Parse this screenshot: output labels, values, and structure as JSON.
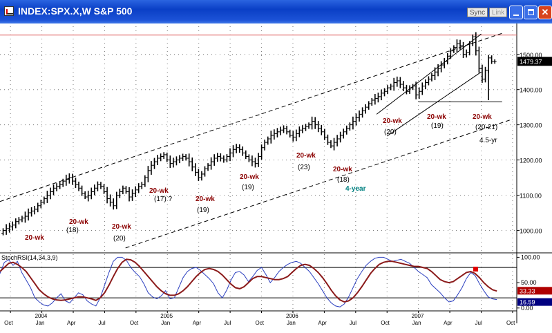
{
  "window": {
    "title": "INDEX:SPX.X,W S&P 500",
    "sync_label": "Sync",
    "link_label": "Link",
    "minimize_icon": "minimize-icon",
    "maximize_icon": "maximize-icon",
    "close_icon": "close-icon"
  },
  "colors": {
    "bars": "#000000",
    "resistance_line": "#e06060",
    "cycle_label": "#8b0000",
    "four_year_label": "#008080",
    "stoch_smooth": "#8b1a1a",
    "stoch_fast": "#2b3fbf",
    "last_price_box": "#000000",
    "stoch_value_1_box": "#b00000",
    "stoch_value_2_box": "#000080"
  },
  "chart_data": [
    {
      "type": "bar",
      "subtype": "weekly OHLC",
      "title": "",
      "y_axis_side": "right",
      "ylim": [
        940,
        1580
      ],
      "yticks": [
        "1500.00",
        "1400.00",
        "1300.00",
        "1200.00",
        "1100.00",
        "1000.00"
      ],
      "ytick_values": [
        1500,
        1400,
        1300,
        1200,
        1100,
        1000
      ],
      "last_price": "1479.37",
      "resistance_level": 1555,
      "support_level_2007": 1365,
      "x_range": [
        "2003-09",
        "2007-10"
      ],
      "month_ticks": [
        "Oct",
        "2004 Jan",
        "Apr",
        "Jul",
        "Oct",
        "2005 Jan",
        "Apr",
        "Jul",
        "Oct",
        "2006 Jan",
        "Apr",
        "Jul",
        "Oct",
        "2007 Jan",
        "Apr",
        "Jul",
        "Oct"
      ],
      "closes": [
        1000,
        1005,
        1010,
        1015,
        1025,
        1030,
        1035,
        1040,
        1050,
        1055,
        1060,
        1070,
        1080,
        1090,
        1100,
        1110,
        1120,
        1125,
        1130,
        1140,
        1145,
        1150,
        1140,
        1130,
        1120,
        1105,
        1095,
        1100,
        1110,
        1120,
        1130,
        1125,
        1110,
        1090,
        1080,
        1070,
        1100,
        1110,
        1120,
        1110,
        1095,
        1105,
        1115,
        1125,
        1130,
        1150,
        1170,
        1185,
        1195,
        1205,
        1210,
        1215,
        1200,
        1190,
        1195,
        1200,
        1205,
        1210,
        1205,
        1195,
        1180,
        1165,
        1150,
        1160,
        1175,
        1185,
        1195,
        1205,
        1210,
        1205,
        1200,
        1210,
        1220,
        1230,
        1235,
        1230,
        1220,
        1210,
        1200,
        1195,
        1190,
        1210,
        1235,
        1250,
        1260,
        1270,
        1275,
        1280,
        1285,
        1290,
        1280,
        1270,
        1265,
        1275,
        1285,
        1290,
        1295,
        1300,
        1310,
        1300,
        1290,
        1280,
        1265,
        1250,
        1240,
        1250,
        1260,
        1270,
        1280,
        1290,
        1300,
        1310,
        1320,
        1330,
        1340,
        1350,
        1360,
        1370,
        1375,
        1380,
        1390,
        1395,
        1405,
        1410,
        1420,
        1425,
        1415,
        1405,
        1395,
        1405,
        1410,
        1385,
        1395,
        1410,
        1420,
        1430,
        1440,
        1450,
        1460,
        1470,
        1480,
        1495,
        1510,
        1520,
        1530,
        1525,
        1500,
        1505,
        1530,
        1550,
        1510,
        1460,
        1430,
        1455,
        1490,
        1480,
        1479.37
      ],
      "lines": [
        {
          "name": "",
          "style": "dashed",
          "from": [
            "2003-09",
            1082
          ],
          "to": [
            "2007-09",
            1560
          ]
        },
        {
          "name": "",
          "style": "dashed",
          "from": [
            "2004-09",
            950
          ],
          "to": [
            "2007-10",
            1316
          ]
        },
        {
          "name": "",
          "style": "solid",
          "from": [
            "2006-09",
            1330
          ],
          "to": [
            "2007-07",
            1558
          ]
        },
        {
          "name": "",
          "style": "solid",
          "from": [
            "2006-10",
            1268
          ],
          "to": [
            "2007-07",
            1450
          ]
        }
      ],
      "annotations": [
        {
          "text": "20-wk",
          "color": "cycle"
        },
        {
          "text": "20-wk",
          "color": "cycle"
        },
        {
          "text": "(18)",
          "color": "black"
        },
        {
          "text": "20-wk",
          "color": "cycle"
        },
        {
          "text": "(20)",
          "color": "black"
        },
        {
          "text": "20-wk",
          "color": "cycle"
        },
        {
          "text": "(17) ?",
          "color": "black"
        },
        {
          "text": "20-wk",
          "color": "cycle"
        },
        {
          "text": "(19)",
          "color": "black"
        },
        {
          "text": "20-wk",
          "color": "cycle"
        },
        {
          "text": "(19)",
          "color": "black"
        },
        {
          "text": "20-wk",
          "color": "cycle"
        },
        {
          "text": "(23)",
          "color": "black"
        },
        {
          "text": "20-wk",
          "color": "cycle"
        },
        {
          "text": "(18)",
          "color": "black"
        },
        {
          "text": "4-year",
          "color": "teal"
        },
        {
          "text": "20-wk",
          "color": "cycle"
        },
        {
          "text": "(20)",
          "color": "black"
        },
        {
          "text": "20-wk",
          "color": "cycle"
        },
        {
          "text": "(19)",
          "color": "black"
        },
        {
          "text": "20-wk",
          "color": "cycle"
        },
        {
          "text": "(20-21)",
          "color": "black"
        },
        {
          "text": "4.5-yr",
          "color": "black"
        }
      ]
    },
    {
      "type": "line",
      "title": "StochRSI(14,34,3,9)",
      "y_axis_side": "right",
      "ylim": [
        -3,
        106
      ],
      "yticks": [
        "100.00",
        "50.00",
        "0.00"
      ],
      "ytick_values": [
        100,
        50,
        0
      ],
      "reference_lines": [
        80,
        20
      ],
      "current_values": [
        "33.33",
        "16.59"
      ],
      "series": [
        {
          "name": "",
          "role": "smooth",
          "values": [
            72,
            80,
            88,
            90,
            86,
            80,
            72,
            60,
            48,
            36,
            28,
            22,
            18,
            16,
            15,
            16,
            18,
            20,
            22,
            22,
            20,
            18,
            15,
            20,
            30,
            45,
            62,
            78,
            90,
            96,
            95,
            90,
            82,
            72,
            62,
            52,
            42,
            34,
            28,
            25,
            25,
            28,
            34,
            42,
            52,
            62,
            70,
            76,
            78,
            76,
            72,
            65,
            56,
            47,
            40,
            38,
            42,
            50,
            58,
            62,
            62,
            60,
            58,
            56,
            56,
            58,
            62,
            70,
            78,
            84,
            86,
            84,
            78,
            70,
            60,
            48,
            35,
            24,
            16,
            12,
            14,
            20,
            30,
            42,
            55,
            68,
            78,
            86,
            90,
            92,
            92,
            90,
            88,
            86,
            84,
            82,
            82,
            80,
            78,
            72,
            64,
            56,
            52,
            50,
            52,
            58,
            64,
            70,
            72,
            68,
            60,
            50,
            42,
            36,
            33.33
          ]
        },
        {
          "name": "",
          "role": "fast",
          "values": [
            68,
            90,
            95,
            84,
            92,
            70,
            55,
            40,
            20,
            12,
            6,
            4,
            10,
            20,
            28,
            14,
            10,
            20,
            30,
            26,
            14,
            8,
            4,
            20,
            45,
            70,
            92,
            100,
            100,
            94,
            80,
            70,
            62,
            48,
            30,
            22,
            18,
            24,
            34,
            18,
            20,
            40,
            60,
            72,
            78,
            80,
            74,
            66,
            58,
            48,
            30,
            20,
            35,
            55,
            70,
            72,
            65,
            52,
            62,
            74,
            80,
            66,
            50,
            60,
            72,
            80,
            86,
            90,
            92,
            88,
            80,
            72,
            60,
            48,
            34,
            20,
            10,
            4,
            2,
            8,
            22,
            40,
            58,
            72,
            84,
            92,
            98,
            100,
            100,
            96,
            92,
            94,
            96,
            92,
            88,
            80,
            72,
            66,
            60,
            46,
            38,
            30,
            20,
            12,
            14,
            26,
            40,
            58,
            70,
            64,
            48,
            34,
            22,
            18,
            16.59
          ]
        }
      ]
    }
  ]
}
